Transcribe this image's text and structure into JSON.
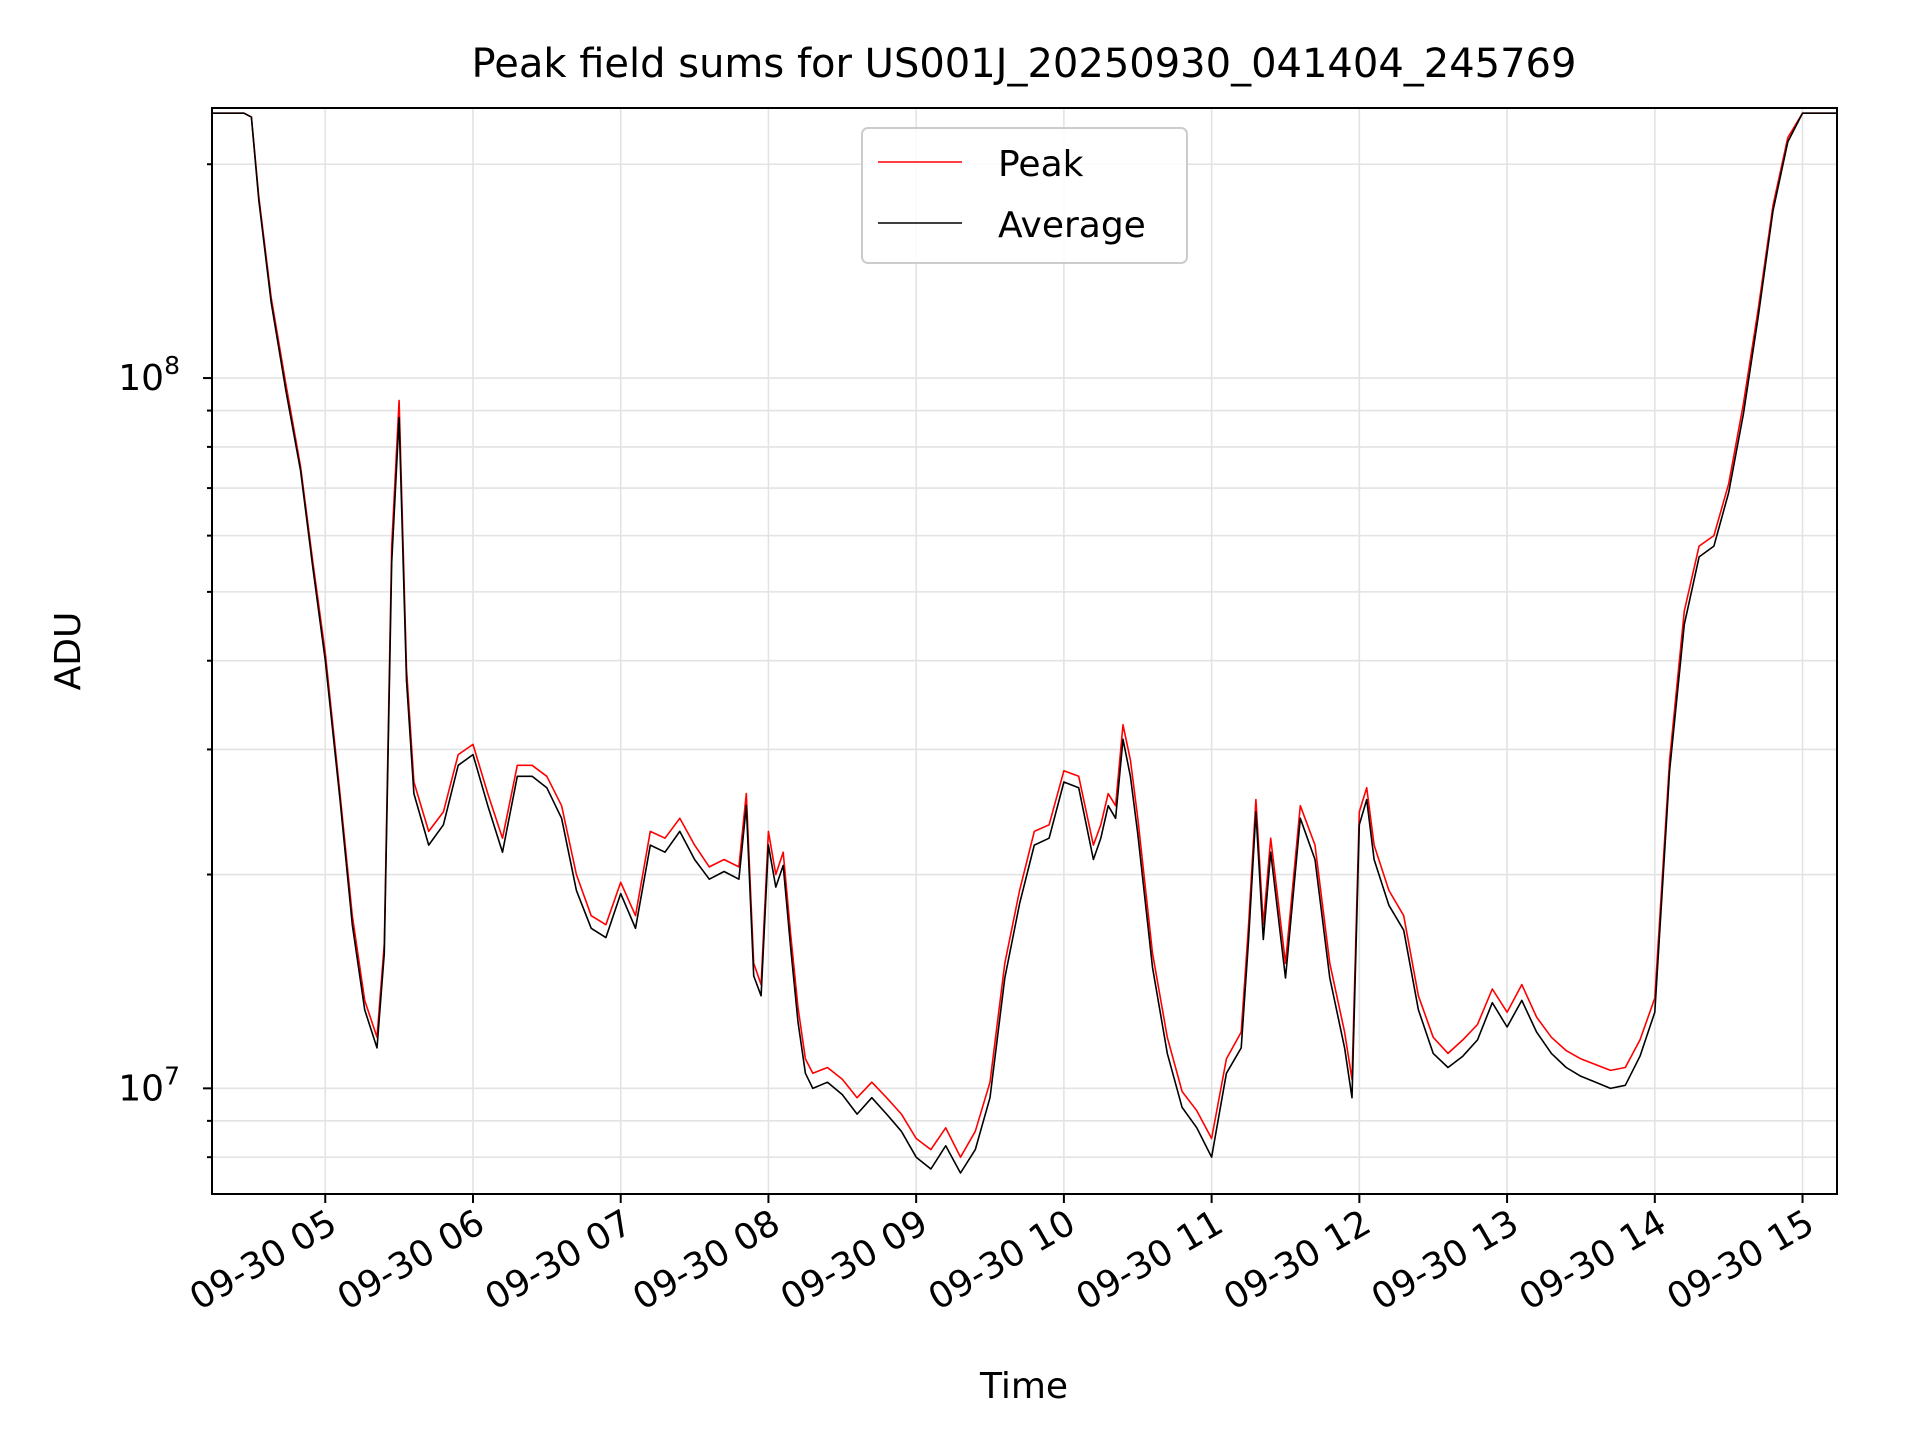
{
  "chart_data": {
    "type": "line",
    "title": "Peak field sums for US001J_20250930_041404_245769",
    "xlabel": "Time",
    "ylabel": "ADU",
    "xscale": "time",
    "yscale": "log",
    "xlim": [
      "09-30 04:14",
      "09-30 15:14"
    ],
    "ylim": [
      7100000,
      240000000
    ],
    "grid": true,
    "legend_position": "top-center",
    "x_ticks": [
      "09-30 05",
      "09-30 06",
      "09-30 07",
      "09-30 08",
      "09-30 09",
      "09-30 10",
      "09-30 11",
      "09-30 12",
      "09-30 13",
      "09-30 14",
      "09-30 15"
    ],
    "y_ticks": [
      {
        "value": 10000000,
        "label": "10",
        "exponent": "7"
      },
      {
        "value": 100000000,
        "label": "10",
        "exponent": "8"
      }
    ],
    "series": [
      {
        "name": "Peak",
        "color": "#ff0000",
        "x": [
          "09-30 04:14",
          "09-30 04:20",
          "09-30 04:24",
          "09-30 04:27",
          "09-30 04:30",
          "09-30 04:33",
          "09-30 04:38",
          "09-30 04:44",
          "09-30 04:50",
          "09-30 04:55",
          "09-30 05:00",
          "09-30 05:06",
          "09-30 05:11",
          "09-30 05:16",
          "09-30 05:21",
          "09-30 05:24",
          "09-30 05:27",
          "09-30 05:30",
          "09-30 05:33",
          "09-30 05:36",
          "09-30 05:42",
          "09-30 05:48",
          "09-30 05:54",
          "09-30 06:00",
          "09-30 06:06",
          "09-30 06:12",
          "09-30 06:18",
          "09-30 06:24",
          "09-30 06:30",
          "09-30 06:36",
          "09-30 06:42",
          "09-30 06:48",
          "09-30 06:54",
          "09-30 07:00",
          "09-30 07:06",
          "09-30 07:12",
          "09-30 07:18",
          "09-30 07:24",
          "09-30 07:30",
          "09-30 07:36",
          "09-30 07:42",
          "09-30 07:48",
          "09-30 07:51",
          "09-30 07:54",
          "09-30 07:57",
          "09-30 08:00",
          "09-30 08:03",
          "09-30 08:06",
          "09-30 08:09",
          "09-30 08:12",
          "09-30 08:15",
          "09-30 08:18",
          "09-30 08:24",
          "09-30 08:30",
          "09-30 08:36",
          "09-30 08:42",
          "09-30 08:48",
          "09-30 08:54",
          "09-30 09:00",
          "09-30 09:06",
          "09-30 09:12",
          "09-30 09:18",
          "09-30 09:24",
          "09-30 09:30",
          "09-30 09:36",
          "09-30 09:42",
          "09-30 09:48",
          "09-30 09:54",
          "09-30 10:00",
          "09-30 10:06",
          "09-30 10:12",
          "09-30 10:15",
          "09-30 10:18",
          "09-30 10:21",
          "09-30 10:24",
          "09-30 10:27",
          "09-30 10:30",
          "09-30 10:36",
          "09-30 10:42",
          "09-30 10:48",
          "09-30 10:54",
          "09-30 11:00",
          "09-30 11:06",
          "09-30 11:12",
          "09-30 11:15",
          "09-30 11:18",
          "09-30 11:21",
          "09-30 11:24",
          "09-30 11:30",
          "09-30 11:36",
          "09-30 11:42",
          "09-30 11:48",
          "09-30 11:54",
          "09-30 11:57",
          "09-30 12:00",
          "09-30 12:03",
          "09-30 12:06",
          "09-30 12:12",
          "09-30 12:18",
          "09-30 12:24",
          "09-30 12:30",
          "09-30 12:36",
          "09-30 12:42",
          "09-30 12:48",
          "09-30 12:54",
          "09-30 13:00",
          "09-30 13:06",
          "09-30 13:12",
          "09-30 13:18",
          "09-30 13:24",
          "09-30 13:30",
          "09-30 13:36",
          "09-30 13:42",
          "09-30 13:48",
          "09-30 13:54",
          "09-30 14:00",
          "09-30 14:06",
          "09-30 14:12",
          "09-30 14:18",
          "09-30 14:24",
          "09-30 14:30",
          "09-30 14:36",
          "09-30 14:42",
          "09-30 14:48",
          "09-30 14:54",
          "09-30 15:00",
          "09-30 15:06",
          "09-30 15:14"
        ],
        "y": [
          236000000,
          236000000,
          236000000,
          236000000,
          233000000,
          180000000,
          130000000,
          98000000,
          75000000,
          55000000,
          41000000,
          26000000,
          17500000,
          13300000,
          11800000,
          16000000,
          58000000,
          93000000,
          39000000,
          27000000,
          23000000,
          24500000,
          29500000,
          30500000,
          26000000,
          22500000,
          28500000,
          28500000,
          27500000,
          25000000,
          20000000,
          17500000,
          17000000,
          19500000,
          17500000,
          23000000,
          22500000,
          24000000,
          22000000,
          20500000,
          21000000,
          20500000,
          26000000,
          15000000,
          14000000,
          23000000,
          20000000,
          21500000,
          16500000,
          13000000,
          11000000,
          10500000,
          10700000,
          10300000,
          9700000,
          10200000,
          9700000,
          9200000,
          8500000,
          8200000,
          8800000,
          8000000,
          8700000,
          10200000,
          15000000,
          19000000,
          23000000,
          23500000,
          28000000,
          27500000,
          22000000,
          23500000,
          26000000,
          25000000,
          32500000,
          29000000,
          24000000,
          15500000,
          11800000,
          9900000,
          9300000,
          8500000,
          11000000,
          12000000,
          17000000,
          25500000,
          17000000,
          22500000,
          15000000,
          25000000,
          22000000,
          15000000,
          12000000,
          10300000,
          24500000,
          26500000,
          22000000,
          19000000,
          17500000,
          13500000,
          11800000,
          11200000,
          11700000,
          12300000,
          13800000,
          12800000,
          14000000,
          12600000,
          11800000,
          11300000,
          11000000,
          10800000,
          10600000,
          10700000,
          11700000,
          13400000,
          29000000,
          47000000,
          58000000,
          60000000,
          71000000,
          92000000,
          125000000,
          175000000,
          218000000,
          236000000,
          236000000,
          236000000
        ]
      },
      {
        "name": "Average",
        "color": "#000000",
        "x": [
          "09-30 04:14",
          "09-30 04:20",
          "09-30 04:24",
          "09-30 04:27",
          "09-30 04:30",
          "09-30 04:33",
          "09-30 04:38",
          "09-30 04:44",
          "09-30 04:50",
          "09-30 04:55",
          "09-30 05:00",
          "09-30 05:06",
          "09-30 05:11",
          "09-30 05:16",
          "09-30 05:21",
          "09-30 05:24",
          "09-30 05:27",
          "09-30 05:30",
          "09-30 05:33",
          "09-30 05:36",
          "09-30 05:42",
          "09-30 05:48",
          "09-30 05:54",
          "09-30 06:00",
          "09-30 06:06",
          "09-30 06:12",
          "09-30 06:18",
          "09-30 06:24",
          "09-30 06:30",
          "09-30 06:36",
          "09-30 06:42",
          "09-30 06:48",
          "09-30 06:54",
          "09-30 07:00",
          "09-30 07:06",
          "09-30 07:12",
          "09-30 07:18",
          "09-30 07:24",
          "09-30 07:30",
          "09-30 07:36",
          "09-30 07:42",
          "09-30 07:48",
          "09-30 07:51",
          "09-30 07:54",
          "09-30 07:57",
          "09-30 08:00",
          "09-30 08:03",
          "09-30 08:06",
          "09-30 08:09",
          "09-30 08:12",
          "09-30 08:15",
          "09-30 08:18",
          "09-30 08:24",
          "09-30 08:30",
          "09-30 08:36",
          "09-30 08:42",
          "09-30 08:48",
          "09-30 08:54",
          "09-30 09:00",
          "09-30 09:06",
          "09-30 09:12",
          "09-30 09:18",
          "09-30 09:24",
          "09-30 09:30",
          "09-30 09:36",
          "09-30 09:42",
          "09-30 09:48",
          "09-30 09:54",
          "09-30 10:00",
          "09-30 10:06",
          "09-30 10:12",
          "09-30 10:15",
          "09-30 10:18",
          "09-30 10:21",
          "09-30 10:24",
          "09-30 10:27",
          "09-30 10:30",
          "09-30 10:36",
          "09-30 10:42",
          "09-30 10:48",
          "09-30 10:54",
          "09-30 11:00",
          "09-30 11:06",
          "09-30 11:12",
          "09-30 11:15",
          "09-30 11:18",
          "09-30 11:21",
          "09-30 11:24",
          "09-30 11:30",
          "09-30 11:36",
          "09-30 11:42",
          "09-30 11:48",
          "09-30 11:54",
          "09-30 11:57",
          "09-30 12:00",
          "09-30 12:03",
          "09-30 12:06",
          "09-30 12:12",
          "09-30 12:18",
          "09-30 12:24",
          "09-30 12:30",
          "09-30 12:36",
          "09-30 12:42",
          "09-30 12:48",
          "09-30 12:54",
          "09-30 13:00",
          "09-30 13:06",
          "09-30 13:12",
          "09-30 13:18",
          "09-30 13:24",
          "09-30 13:30",
          "09-30 13:36",
          "09-30 13:42",
          "09-30 13:48",
          "09-30 13:54",
          "09-30 14:00",
          "09-30 14:06",
          "09-30 14:12",
          "09-30 14:18",
          "09-30 14:24",
          "09-30 14:30",
          "09-30 14:36",
          "09-30 14:42",
          "09-30 14:48",
          "09-30 14:54",
          "09-30 15:00",
          "09-30 15:06",
          "09-30 15:14"
        ],
        "y": [
          236000000,
          236000000,
          236000000,
          236000000,
          233000000,
          178000000,
          128000000,
          96000000,
          74000000,
          54000000,
          40000000,
          25500000,
          17000000,
          12900000,
          11400000,
          15500000,
          55000000,
          88000000,
          37500000,
          26000000,
          22000000,
          23500000,
          28500000,
          29500000,
          25000000,
          21500000,
          27500000,
          27500000,
          26500000,
          24000000,
          19000000,
          16800000,
          16300000,
          18800000,
          16800000,
          22000000,
          21500000,
          23000000,
          21000000,
          19700000,
          20200000,
          19700000,
          25000000,
          14400000,
          13500000,
          22000000,
          19200000,
          20600000,
          15800000,
          12400000,
          10500000,
          10000000,
          10200000,
          9800000,
          9200000,
          9700000,
          9200000,
          8700000,
          8000000,
          7700000,
          8300000,
          7600000,
          8200000,
          9700000,
          14300000,
          18200000,
          22000000,
          22500000,
          27000000,
          26500000,
          21000000,
          22500000,
          25000000,
          24000000,
          31000000,
          27500000,
          22800000,
          14800000,
          11200000,
          9400000,
          8800000,
          8000000,
          10500000,
          11400000,
          16200000,
          24500000,
          16200000,
          21500000,
          14300000,
          24000000,
          21000000,
          14300000,
          11400000,
          9700000,
          23500000,
          25500000,
          21000000,
          18100000,
          16700000,
          12900000,
          11200000,
          10700000,
          11100000,
          11700000,
          13200000,
          12200000,
          13300000,
          12000000,
          11200000,
          10700000,
          10400000,
          10200000,
          10000000,
          10100000,
          11100000,
          12800000,
          28000000,
          45000000,
          56000000,
          58000000,
          69000000,
          89000000,
          122000000,
          172000000,
          215000000,
          236000000,
          236000000,
          236000000
        ]
      }
    ]
  }
}
